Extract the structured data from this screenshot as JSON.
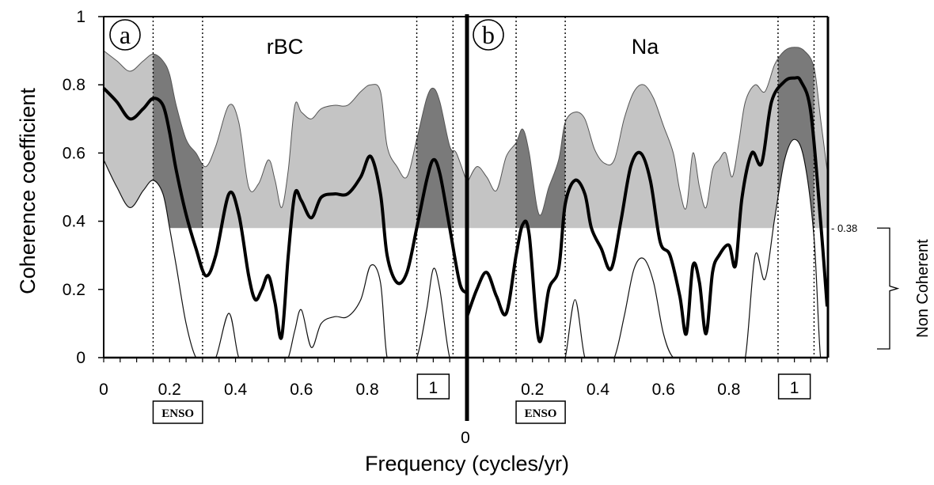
{
  "chart_data": {
    "type": "line",
    "ylabel": "Coherence coefficient",
    "xlabel": "Frequency (cycles/yr)",
    "ylim": [
      0,
      1
    ],
    "y_ticks": [
      "0",
      "0.2",
      "0.4",
      "0.6",
      "0.8",
      "1"
    ],
    "significance": {
      "value": 0.38,
      "label": "- 0.38",
      "bracket_label": "Non Coherent"
    },
    "colors": {
      "band_light": "#c4c4c4",
      "band_dark": "#7a7a7a",
      "line": "#000000"
    },
    "panels": [
      {
        "letter": "a",
        "title": "rBC",
        "xlim": [
          0,
          1.1
        ],
        "x_ticks": [
          "0",
          "0.2",
          "0.4",
          "0.6",
          "0.8"
        ],
        "boxed_tick": {
          "label": "1",
          "x": 1.0
        },
        "highlight_bands": [
          {
            "label": "ENSO",
            "from": 0.15,
            "to": 0.3
          },
          {
            "label": "",
            "from": 0.95,
            "to": 1.06
          }
        ],
        "coherence": {
          "x": [
            0,
            0.04,
            0.08,
            0.12,
            0.15,
            0.18,
            0.2,
            0.22,
            0.25,
            0.28,
            0.31,
            0.34,
            0.38,
            0.41,
            0.44,
            0.46,
            0.48,
            0.5,
            0.52,
            0.54,
            0.56,
            0.58,
            0.6,
            0.63,
            0.66,
            0.7,
            0.74,
            0.78,
            0.81,
            0.84,
            0.86,
            0.89,
            0.92,
            0.95,
            0.98,
            1.0,
            1.02,
            1.05,
            1.08,
            1.1
          ],
          "y": [
            0.79,
            0.75,
            0.7,
            0.73,
            0.76,
            0.74,
            0.66,
            0.55,
            0.42,
            0.32,
            0.24,
            0.3,
            0.48,
            0.42,
            0.24,
            0.17,
            0.2,
            0.24,
            0.16,
            0.06,
            0.3,
            0.48,
            0.46,
            0.41,
            0.47,
            0.48,
            0.48,
            0.53,
            0.59,
            0.48,
            0.3,
            0.22,
            0.25,
            0.38,
            0.52,
            0.58,
            0.54,
            0.38,
            0.22,
            0.19
          ]
        },
        "upper": {
          "x": [
            0,
            0.04,
            0.08,
            0.12,
            0.15,
            0.18,
            0.2,
            0.22,
            0.25,
            0.28,
            0.31,
            0.34,
            0.38,
            0.41,
            0.44,
            0.47,
            0.5,
            0.52,
            0.54,
            0.56,
            0.58,
            0.6,
            0.63,
            0.66,
            0.7,
            0.74,
            0.78,
            0.81,
            0.84,
            0.86,
            0.89,
            0.92,
            0.95,
            0.98,
            1.0,
            1.02,
            1.05,
            1.07,
            1.1
          ],
          "y": [
            0.9,
            0.87,
            0.84,
            0.87,
            0.89,
            0.87,
            0.83,
            0.74,
            0.64,
            0.6,
            0.56,
            0.62,
            0.74,
            0.69,
            0.5,
            0.51,
            0.58,
            0.52,
            0.44,
            0.55,
            0.74,
            0.72,
            0.7,
            0.73,
            0.74,
            0.74,
            0.78,
            0.8,
            0.78,
            0.62,
            0.56,
            0.53,
            0.64,
            0.76,
            0.79,
            0.75,
            0.62,
            0.6,
            0.52
          ]
        },
        "lower": {
          "x": [
            0,
            0.04,
            0.08,
            0.12,
            0.15,
            0.18,
            0.2,
            0.22,
            0.25,
            0.28,
            0.31,
            0.34,
            0.38,
            0.41,
            0.44,
            0.47,
            0.5,
            0.52,
            0.54,
            0.56,
            0.58,
            0.6,
            0.63,
            0.66,
            0.7,
            0.74,
            0.78,
            0.81,
            0.84,
            0.86,
            0.89,
            0.92,
            0.95,
            0.98,
            1.0,
            1.02,
            1.05,
            1.08,
            1.1
          ],
          "y": [
            0.58,
            0.5,
            0.44,
            0.49,
            0.52,
            0.48,
            0.38,
            0.27,
            0.1,
            0.0,
            0.0,
            0.0,
            0.13,
            0.0,
            0.0,
            0.0,
            0.0,
            0.0,
            0.0,
            0.0,
            0.08,
            0.14,
            0.03,
            0.1,
            0.12,
            0.12,
            0.17,
            0.27,
            0.22,
            0.0,
            0.0,
            0.0,
            0.0,
            0.14,
            0.26,
            0.2,
            0.0,
            0.0,
            0.0
          ]
        }
      },
      {
        "letter": "b",
        "title": "Na",
        "xlim": [
          0,
          1.1
        ],
        "x_ticks": [
          "0",
          "0.2",
          "0.4",
          "0.6",
          "0.8"
        ],
        "boxed_tick": {
          "label": "1",
          "x": 1.0
        },
        "highlight_bands": [
          {
            "label": "ENSO",
            "from": 0.15,
            "to": 0.3
          },
          {
            "label": "",
            "from": 0.95,
            "to": 1.06
          }
        ],
        "coherence": {
          "x": [
            0,
            0.03,
            0.06,
            0.09,
            0.12,
            0.15,
            0.17,
            0.19,
            0.22,
            0.25,
            0.28,
            0.3,
            0.33,
            0.36,
            0.38,
            0.41,
            0.44,
            0.47,
            0.5,
            0.53,
            0.56,
            0.59,
            0.62,
            0.65,
            0.67,
            0.69,
            0.71,
            0.73,
            0.75,
            0.77,
            0.8,
            0.82,
            0.84,
            0.87,
            0.9,
            0.93,
            0.97,
            1.0,
            1.02,
            1.05,
            1.08,
            1.1
          ],
          "y": [
            0.12,
            0.2,
            0.25,
            0.18,
            0.13,
            0.3,
            0.39,
            0.36,
            0.05,
            0.2,
            0.26,
            0.45,
            0.52,
            0.48,
            0.38,
            0.32,
            0.26,
            0.4,
            0.56,
            0.6,
            0.52,
            0.34,
            0.3,
            0.18,
            0.07,
            0.27,
            0.22,
            0.07,
            0.25,
            0.3,
            0.33,
            0.27,
            0.47,
            0.6,
            0.57,
            0.75,
            0.81,
            0.82,
            0.81,
            0.72,
            0.4,
            0.15
          ]
        },
        "upper": {
          "x": [
            0,
            0.03,
            0.06,
            0.09,
            0.12,
            0.15,
            0.17,
            0.19,
            0.22,
            0.25,
            0.28,
            0.3,
            0.33,
            0.36,
            0.39,
            0.42,
            0.45,
            0.48,
            0.51,
            0.54,
            0.57,
            0.6,
            0.63,
            0.65,
            0.67,
            0.69,
            0.71,
            0.73,
            0.75,
            0.77,
            0.79,
            0.81,
            0.83,
            0.85,
            0.88,
            0.91,
            0.94,
            0.97,
            1.0,
            1.03,
            1.06,
            1.08,
            1.1
          ],
          "y": [
            0.51,
            0.56,
            0.53,
            0.49,
            0.59,
            0.63,
            0.67,
            0.6,
            0.42,
            0.5,
            0.58,
            0.69,
            0.72,
            0.7,
            0.61,
            0.57,
            0.58,
            0.7,
            0.78,
            0.8,
            0.76,
            0.68,
            0.6,
            0.49,
            0.44,
            0.6,
            0.5,
            0.44,
            0.55,
            0.58,
            0.6,
            0.53,
            0.63,
            0.75,
            0.8,
            0.78,
            0.86,
            0.9,
            0.91,
            0.9,
            0.85,
            0.7,
            0.55
          ]
        },
        "lower": {
          "x": [
            0,
            0.03,
            0.06,
            0.09,
            0.12,
            0.15,
            0.17,
            0.19,
            0.22,
            0.25,
            0.28,
            0.3,
            0.33,
            0.36,
            0.39,
            0.42,
            0.45,
            0.48,
            0.51,
            0.54,
            0.57,
            0.6,
            0.63,
            0.67,
            0.7,
            0.73,
            0.76,
            0.79,
            0.82,
            0.85,
            0.88,
            0.91,
            0.94,
            0.97,
            1.0,
            1.03,
            1.06,
            1.08,
            1.1
          ],
          "y": [
            0.0,
            0.0,
            0.0,
            0.0,
            0.0,
            0.0,
            0.0,
            0.0,
            0.0,
            0.0,
            0.0,
            0.0,
            0.17,
            0.0,
            0.0,
            0.0,
            0.0,
            0.12,
            0.26,
            0.29,
            0.22,
            0.07,
            0.0,
            0.0,
            0.0,
            0.0,
            0.0,
            0.0,
            0.0,
            0.0,
            0.3,
            0.23,
            0.41,
            0.58,
            0.64,
            0.58,
            0.35,
            0.0,
            0.0
          ]
        }
      }
    ]
  }
}
